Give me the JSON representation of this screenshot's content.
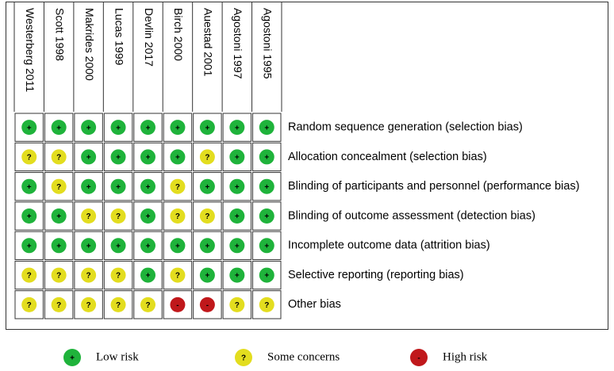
{
  "studies": [
    "Westerberg 2011",
    "Scott 1998",
    "Makrides 2000",
    "Lucas 1999",
    "Devlin 2017",
    "Birch 2000",
    "Auestad 2001",
    "Agostoni 1997",
    "Agostoni 1995"
  ],
  "domains": [
    "Random sequence generation (selection bias)",
    "Allocation concealment (selection bias)",
    "Blinding of participants and personnel (performance bias)",
    "Blinding of outcome assessment (detection bias)",
    "Incomplete outcome data (attrition bias)",
    "Selective reporting (reporting bias)",
    "Other bias"
  ],
  "judgments": [
    [
      "+",
      "+",
      "+",
      "+",
      "+",
      "+",
      "+",
      "+",
      "+"
    ],
    [
      "?",
      "?",
      "+",
      "+",
      "+",
      "+",
      "?",
      "+",
      "+"
    ],
    [
      "+",
      "?",
      "+",
      "+",
      "+",
      "?",
      "+",
      "+",
      "+"
    ],
    [
      "+",
      "+",
      "?",
      "?",
      "+",
      "?",
      "?",
      "+",
      "+"
    ],
    [
      "+",
      "+",
      "+",
      "+",
      "+",
      "+",
      "+",
      "+",
      "+"
    ],
    [
      "?",
      "?",
      "?",
      "?",
      "+",
      "?",
      "+",
      "+",
      "+"
    ],
    [
      "?",
      "?",
      "?",
      "?",
      "?",
      "-",
      "-",
      "?",
      "?"
    ]
  ],
  "legend": [
    {
      "symbol": "+",
      "label": "Low risk",
      "color": "#1fb33b"
    },
    {
      "symbol": "?",
      "label": "Some concerns",
      "color": "#e3dd1f"
    },
    {
      "symbol": "-",
      "label": "High risk",
      "color": "#c0181b"
    }
  ]
}
